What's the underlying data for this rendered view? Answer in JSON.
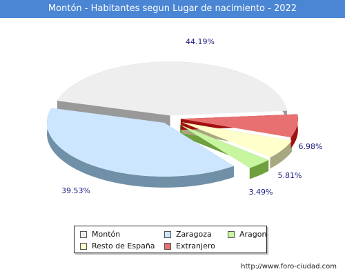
{
  "header": {
    "title": "Montón - Habitantes segun Lugar de nacimiento - 2022"
  },
  "footer": {
    "url": "http://www.foro-ciudad.com"
  },
  "chart_data": {
    "type": "pie",
    "title": "Montón - Habitantes segun Lugar de nacimiento - 2022",
    "legend_position": "bottom",
    "series": [
      {
        "name": "Montón",
        "value": 44.19,
        "label": "44.19%",
        "color": "#eeeeee",
        "side": "#999999"
      },
      {
        "name": "Zaragoza",
        "value": 39.53,
        "label": "39.53%",
        "color": "#cce6ff",
        "side": "#7090a8"
      },
      {
        "name": "Aragon",
        "value": 3.49,
        "label": "3.49%",
        "color": "#c8f5a0",
        "side": "#6ea040"
      },
      {
        "name": "Resto de España",
        "value": 5.81,
        "label": "5.81%",
        "color": "#ffffcc",
        "side": "#a8a880"
      },
      {
        "name": "Extranjero",
        "value": 6.98,
        "label": "6.98%",
        "color": "#e87070",
        "side": "#a01010"
      }
    ]
  }
}
